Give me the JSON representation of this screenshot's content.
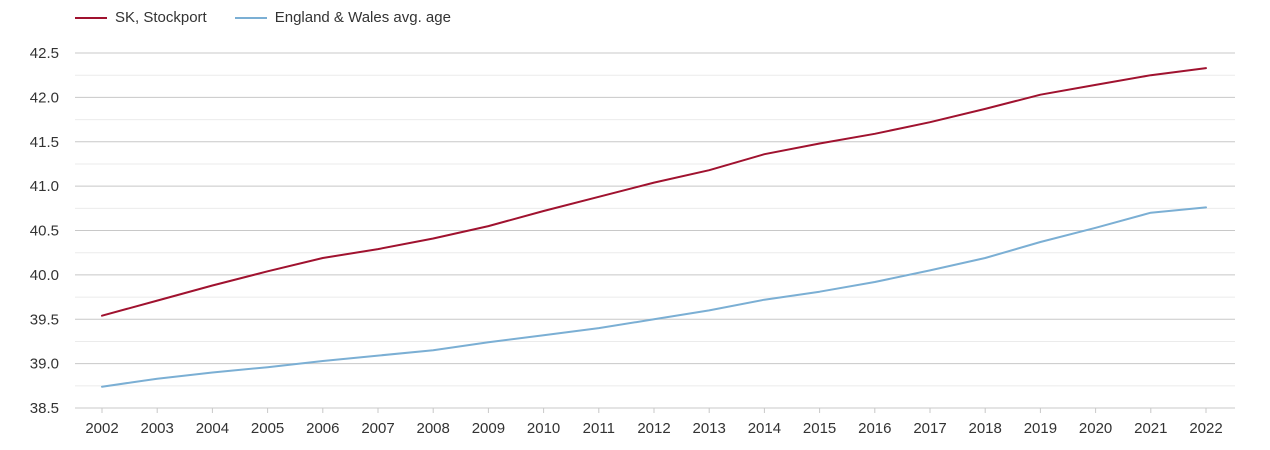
{
  "chart_data": {
    "type": "line",
    "categories": [
      "2002",
      "2003",
      "2004",
      "2005",
      "2006",
      "2007",
      "2008",
      "2009",
      "2010",
      "2011",
      "2012",
      "2013",
      "2014",
      "2015",
      "2016",
      "2017",
      "2018",
      "2019",
      "2020",
      "2021",
      "2022"
    ],
    "series": [
      {
        "name": "SK, Stockport",
        "color": "#a0122f",
        "values": [
          39.54,
          39.71,
          39.88,
          40.04,
          40.19,
          40.29,
          40.41,
          40.55,
          40.72,
          40.88,
          41.04,
          41.18,
          41.36,
          41.48,
          41.59,
          41.72,
          41.87,
          42.03,
          42.14,
          42.25,
          42.33
        ]
      },
      {
        "name": "England & Wales avg. age",
        "color": "#7bafd4",
        "values": [
          38.74,
          38.83,
          38.9,
          38.96,
          39.03,
          39.09,
          39.15,
          39.24,
          39.32,
          39.4,
          39.5,
          39.6,
          39.72,
          39.81,
          39.92,
          40.05,
          40.19,
          40.37,
          40.53,
          40.7,
          40.76
        ]
      }
    ],
    "yticks": [
      "38.5",
      "39.0",
      "39.5",
      "40.0",
      "40.5",
      "41.0",
      "41.5",
      "42.0",
      "42.5"
    ],
    "ylim": [
      38.5,
      42.5
    ],
    "grid": true,
    "legend": "top-left"
  }
}
